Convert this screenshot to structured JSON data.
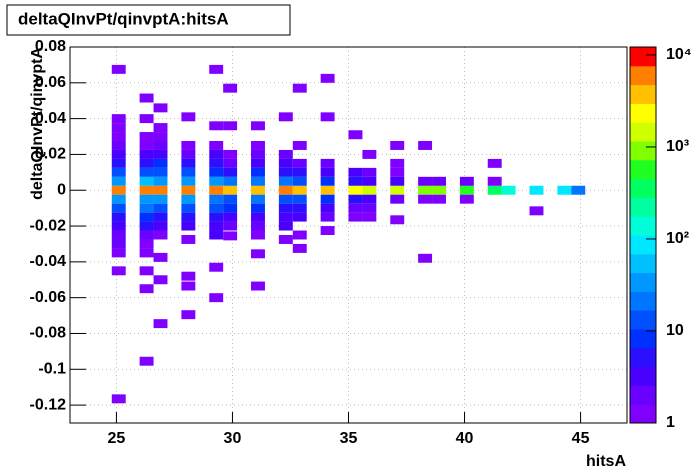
{
  "chart_data": {
    "type": "heatmap2d",
    "title": "deltaQInvPt/qinvptA:hitsA",
    "x_label": "hitsA",
    "y_label": "deltaQInvPt/qinvptA",
    "xlim": [
      23,
      47
    ],
    "ylim": [
      -0.13,
      0.08
    ],
    "xticks": [
      25,
      30,
      35,
      40,
      45
    ],
    "yticks": [
      -0.12,
      -0.1,
      -0.08,
      -0.06,
      -0.04,
      -0.02,
      0,
      0.02,
      0.04,
      0.06,
      0.08
    ],
    "zlim": [
      1,
      12200
    ],
    "zlog": true,
    "zticks": [
      1,
      10,
      {
        "value": 100,
        "label": "10²"
      },
      {
        "value": 1000,
        "label": "10³"
      },
      {
        "value": 10000,
        "label": "10⁴"
      }
    ],
    "grid": true,
    "bin_width": [
      0.6,
      0.005
    ],
    "palette": [
      "#8000ff",
      "#6a00ff",
      "#4a00ff",
      "#2a10ff",
      "#0030ff",
      "#0050ff",
      "#0075ff",
      "#0098ff",
      "#00c0ff",
      "#00e8ff",
      "#00ffd8",
      "#00ffa0",
      "#00ff60",
      "#20ff20",
      "#80ff00",
      "#d0ff00",
      "#ffff00",
      "#ffc000",
      "#ff8000",
      "#ff0000"
    ],
    "cells": [
      [
        24.8,
        0,
        5000
      ],
      [
        24.8,
        0.005,
        40
      ],
      [
        24.8,
        -0.005,
        30
      ],
      [
        24.8,
        0.01,
        15
      ],
      [
        24.8,
        -0.01,
        12
      ],
      [
        24.8,
        0.015,
        6
      ],
      [
        24.8,
        -0.015,
        6
      ],
      [
        24.8,
        0.02,
        3
      ],
      [
        24.8,
        -0.02,
        4
      ],
      [
        24.8,
        0.025,
        2
      ],
      [
        24.8,
        -0.025,
        2
      ],
      [
        24.8,
        0.03,
        1
      ],
      [
        24.8,
        -0.03,
        2
      ],
      [
        24.8,
        0.035,
        1
      ],
      [
        24.8,
        0.04,
        1
      ],
      [
        24.8,
        -0.035,
        1
      ],
      [
        24.8,
        -0.045,
        1
      ],
      [
        24.8,
        0.0675,
        1
      ],
      [
        24.8,
        -0.1165,
        1
      ],
      [
        26,
        0,
        6000
      ],
      [
        26,
        0.005,
        50
      ],
      [
        26,
        -0.005,
        40
      ],
      [
        26,
        0.01,
        15
      ],
      [
        26,
        -0.01,
        20
      ],
      [
        26,
        0.015,
        5
      ],
      [
        26,
        -0.015,
        10
      ],
      [
        26,
        0.02,
        3
      ],
      [
        26,
        -0.02,
        6
      ],
      [
        26,
        0.025,
        1
      ],
      [
        26,
        -0.025,
        2
      ],
      [
        26,
        0.03,
        1
      ],
      [
        26,
        -0.03,
        1
      ],
      [
        26,
        0.04,
        1
      ],
      [
        26,
        0.0515,
        1
      ],
      [
        26,
        -0.035,
        1
      ],
      [
        26,
        -0.045,
        1
      ],
      [
        26,
        -0.055,
        1
      ],
      [
        26,
        -0.0955,
        1
      ],
      [
        26.6,
        0,
        6000
      ],
      [
        26.6,
        0.005,
        40
      ],
      [
        26.6,
        -0.005,
        30
      ],
      [
        26.6,
        0.01,
        12
      ],
      [
        26.6,
        -0.01,
        15
      ],
      [
        26.6,
        0.015,
        8
      ],
      [
        26.6,
        -0.015,
        6
      ],
      [
        26.6,
        0.02,
        3
      ],
      [
        26.6,
        -0.02,
        3
      ],
      [
        26.6,
        0.025,
        2
      ],
      [
        26.6,
        -0.025,
        1
      ],
      [
        26.6,
        0.03,
        1
      ],
      [
        26.6,
        0.035,
        1
      ],
      [
        26.6,
        0.046,
        1
      ],
      [
        26.6,
        -0.0375,
        1
      ],
      [
        26.6,
        -0.05,
        1
      ],
      [
        26.6,
        -0.0745,
        1
      ],
      [
        27.8,
        0,
        5000
      ],
      [
        27.8,
        0.005,
        40
      ],
      [
        27.8,
        -0.005,
        30
      ],
      [
        27.8,
        0.01,
        12
      ],
      [
        27.8,
        -0.01,
        12
      ],
      [
        27.8,
        0.015,
        6
      ],
      [
        27.8,
        -0.015,
        5
      ],
      [
        27.8,
        0.02,
        2
      ],
      [
        27.8,
        -0.02,
        3
      ],
      [
        27.8,
        0.025,
        1
      ],
      [
        27.8,
        0.041,
        1
      ],
      [
        27.8,
        -0.0275,
        1
      ],
      [
        27.8,
        -0.048,
        1
      ],
      [
        27.8,
        -0.0535,
        1
      ],
      [
        27.8,
        -0.0695,
        1
      ],
      [
        29,
        0,
        5000
      ],
      [
        29,
        0.005,
        35
      ],
      [
        29,
        -0.005,
        25
      ],
      [
        29,
        0.01,
        10
      ],
      [
        29,
        -0.01,
        12
      ],
      [
        29,
        0.015,
        5
      ],
      [
        29,
        -0.015,
        5
      ],
      [
        29,
        0.02,
        4
      ],
      [
        29,
        -0.02,
        3
      ],
      [
        29,
        0.025,
        1
      ],
      [
        29,
        -0.025,
        3
      ],
      [
        29,
        0.036,
        1
      ],
      [
        29,
        0.0675,
        1
      ],
      [
        29,
        -0.043,
        1
      ],
      [
        29,
        -0.06,
        1
      ],
      [
        29.6,
        0,
        4000
      ],
      [
        29.6,
        0.005,
        20
      ],
      [
        29.6,
        -0.005,
        15
      ],
      [
        29.6,
        0.01,
        6
      ],
      [
        29.6,
        -0.01,
        8
      ],
      [
        29.6,
        0.015,
        2
      ],
      [
        29.6,
        -0.015,
        3
      ],
      [
        29.6,
        0.02,
        1
      ],
      [
        29.6,
        -0.02,
        2
      ],
      [
        29.6,
        0.036,
        1
      ],
      [
        29.6,
        0.057,
        1
      ],
      [
        29.6,
        -0.0255,
        1
      ],
      [
        30.8,
        0,
        4000
      ],
      [
        30.8,
        0.005,
        25
      ],
      [
        30.8,
        -0.005,
        20
      ],
      [
        30.8,
        0.01,
        8
      ],
      [
        30.8,
        -0.01,
        8
      ],
      [
        30.8,
        0.015,
        3
      ],
      [
        30.8,
        -0.015,
        3
      ],
      [
        30.8,
        0.02,
        2
      ],
      [
        30.8,
        -0.02,
        2
      ],
      [
        30.8,
        0.025,
        1
      ],
      [
        30.8,
        0.036,
        1
      ],
      [
        30.8,
        -0.025,
        1
      ],
      [
        30.8,
        -0.0355,
        1
      ],
      [
        30.8,
        -0.0535,
        1
      ],
      [
        32,
        0,
        5000
      ],
      [
        32,
        0.005,
        20
      ],
      [
        32,
        -0.005,
        15
      ],
      [
        32,
        0.01,
        5
      ],
      [
        32,
        -0.01,
        6
      ],
      [
        32,
        0.015,
        3
      ],
      [
        32,
        -0.015,
        4
      ],
      [
        32,
        0.02,
        2
      ],
      [
        32,
        -0.02,
        3
      ],
      [
        32,
        0.041,
        1
      ],
      [
        32,
        -0.0275,
        1
      ],
      [
        32.6,
        0,
        4000
      ],
      [
        32.6,
        0.005,
        15
      ],
      [
        32.6,
        -0.005,
        12
      ],
      [
        32.6,
        0.01,
        5
      ],
      [
        32.6,
        -0.01,
        5
      ],
      [
        32.6,
        0.015,
        2
      ],
      [
        32.6,
        -0.015,
        3
      ],
      [
        32.6,
        0.025,
        1
      ],
      [
        32.6,
        0.057,
        1
      ],
      [
        32.6,
        -0.025,
        1
      ],
      [
        32.6,
        -0.0325,
        1
      ],
      [
        33.8,
        0,
        3000
      ],
      [
        33.8,
        0.005,
        10
      ],
      [
        33.8,
        -0.005,
        10
      ],
      [
        33.8,
        0.01,
        4
      ],
      [
        33.8,
        -0.01,
        4
      ],
      [
        33.8,
        0.015,
        2
      ],
      [
        33.8,
        -0.015,
        2
      ],
      [
        33.8,
        0.041,
        1
      ],
      [
        33.8,
        0.0625,
        1
      ],
      [
        33.8,
        -0.0225,
        1
      ],
      [
        35,
        0,
        2000
      ],
      [
        35,
        0.005,
        6
      ],
      [
        35,
        -0.005,
        5
      ],
      [
        35,
        0.01,
        3
      ],
      [
        35,
        -0.01,
        2
      ],
      [
        35,
        -0.015,
        1
      ],
      [
        35,
        0.031,
        1
      ],
      [
        35.6,
        0,
        1500
      ],
      [
        35.6,
        0.005,
        4
      ],
      [
        35.6,
        -0.005,
        3
      ],
      [
        35.6,
        0.01,
        2
      ],
      [
        35.6,
        -0.01,
        2
      ],
      [
        35.6,
        -0.015,
        1
      ],
      [
        35.6,
        0.02,
        1
      ],
      [
        36.8,
        0,
        1200
      ],
      [
        36.8,
        0.005,
        3
      ],
      [
        36.8,
        -0.005,
        2
      ],
      [
        36.8,
        0.01,
        1
      ],
      [
        36.8,
        0.015,
        1
      ],
      [
        36.8,
        0.025,
        1
      ],
      [
        36.8,
        -0.0165,
        1
      ],
      [
        38,
        0,
        1000
      ],
      [
        38,
        0.005,
        2
      ],
      [
        38,
        -0.005,
        1
      ],
      [
        38,
        0.025,
        1
      ],
      [
        38,
        -0.038,
        1
      ],
      [
        38.6,
        0,
        900
      ],
      [
        38.6,
        0.005,
        2
      ],
      [
        38.6,
        -0.005,
        1
      ],
      [
        39.8,
        0,
        600
      ],
      [
        39.8,
        0.005,
        2
      ],
      [
        39.8,
        -0.005,
        1
      ],
      [
        41,
        0,
        300
      ],
      [
        41,
        0.005,
        1
      ],
      [
        41,
        0.015,
        1
      ],
      [
        41.6,
        0,
        150
      ],
      [
        42.8,
        0,
        100
      ],
      [
        42.8,
        -0.0115,
        1
      ],
      [
        44,
        0,
        80
      ],
      [
        44.6,
        0,
        20
      ]
    ]
  }
}
